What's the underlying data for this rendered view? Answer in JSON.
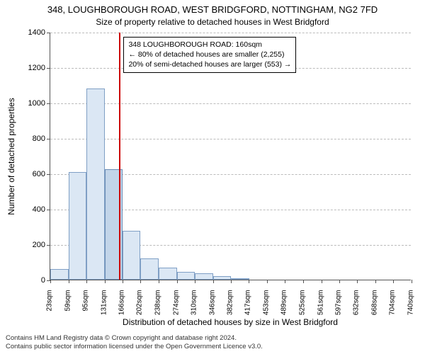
{
  "title_main": "348, LOUGHBOROUGH ROAD, WEST BRIDGFORD, NOTTINGHAM, NG2 7FD",
  "title_sub": "Size of property relative to detached houses in West Bridgford",
  "ylabel": "Number of detached properties",
  "xlabel": "Distribution of detached houses by size in West Bridgford",
  "footer_line1": "Contains HM Land Registry data © Crown copyright and database right 2024.",
  "footer_line2": "Contains public sector information licensed under the Open Government Licence v3.0.",
  "chart": {
    "type": "histogram",
    "background_color": "#ffffff",
    "axis_color": "#555555",
    "grid_color": "#bbbbbb",
    "bar_fill": "#dbe7f4",
    "bar_stroke": "#7f9fc5",
    "highlight_fill": "#c2d5e9",
    "highlight_stroke": "#6a8cb5",
    "vline_color": "#cc0000",
    "ylim": [
      0,
      1400
    ],
    "ytick_step": 200,
    "yticks": [
      0,
      200,
      400,
      600,
      800,
      1000,
      1200,
      1400
    ],
    "x_tick_step": 36,
    "x_start": 23,
    "x_end": 740,
    "x_ticks": [
      23,
      59,
      95,
      131,
      166,
      202,
      238,
      274,
      310,
      346,
      382,
      417,
      453,
      489,
      525,
      561,
      597,
      632,
      668,
      704,
      740
    ],
    "x_tick_unit": "sqm",
    "bars": [
      {
        "x": 23,
        "v": 60
      },
      {
        "x": 59,
        "v": 610
      },
      {
        "x": 95,
        "v": 1080
      },
      {
        "x": 131,
        "v": 625,
        "highlight": true
      },
      {
        "x": 166,
        "v": 275
      },
      {
        "x": 202,
        "v": 120
      },
      {
        "x": 238,
        "v": 70
      },
      {
        "x": 274,
        "v": 45
      },
      {
        "x": 310,
        "v": 35
      },
      {
        "x": 346,
        "v": 20
      },
      {
        "x": 382,
        "v": 10
      },
      {
        "x": 417,
        "v": 0
      },
      {
        "x": 453,
        "v": 0
      },
      {
        "x": 489,
        "v": 0
      },
      {
        "x": 525,
        "v": 0
      },
      {
        "x": 561,
        "v": 0
      },
      {
        "x": 597,
        "v": 0
      },
      {
        "x": 632,
        "v": 0
      },
      {
        "x": 668,
        "v": 0
      },
      {
        "x": 704,
        "v": 0
      }
    ],
    "vline_x": 160,
    "annotation": {
      "line1": "348 LOUGHBOROUGH ROAD: 160sqm",
      "line2": "← 80% of detached houses are smaller (2,255)",
      "line3": "20% of semi-detached houses are larger (553) →",
      "border_color": "#000000",
      "bg_color": "#ffffff",
      "fontsize": 10.5
    }
  }
}
